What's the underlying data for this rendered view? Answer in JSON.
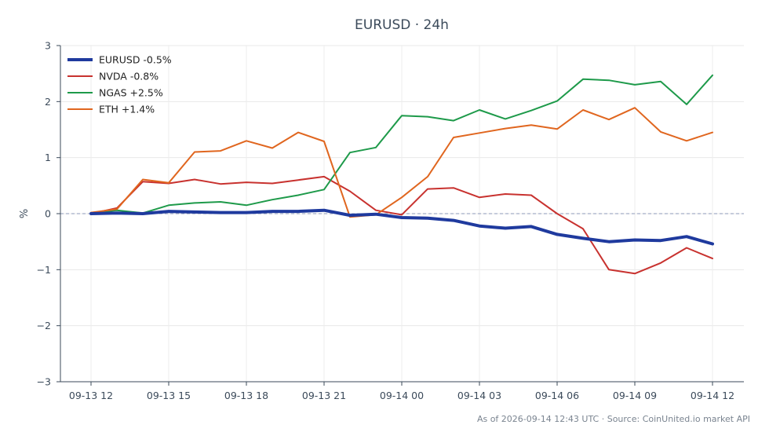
{
  "chart_data": {
    "type": "line",
    "title": "EURUSD · 24h",
    "ylabel": "%",
    "xlabel": "",
    "ylim": [
      -3,
      3
    ],
    "yticks": [
      -3,
      -2,
      -1,
      0,
      1,
      2,
      3
    ],
    "ytick_labels": [
      "−3",
      "−2",
      "−1",
      "0",
      "1",
      "2",
      "3"
    ],
    "x": [
      "09-13 12",
      "09-13 13",
      "09-13 14",
      "09-13 15",
      "09-13 16",
      "09-13 17",
      "09-13 18",
      "09-13 19",
      "09-13 20",
      "09-13 21",
      "09-13 22",
      "09-13 23",
      "09-14 00",
      "09-14 01",
      "09-14 02",
      "09-14 03",
      "09-14 04",
      "09-14 05",
      "09-14 06",
      "09-14 07",
      "09-14 08",
      "09-14 09",
      "09-14 10",
      "09-14 11",
      "09-14 12"
    ],
    "xtick_labels": [
      "09-13 12",
      "09-13 15",
      "09-13 18",
      "09-13 21",
      "09-14 00",
      "09-14 03",
      "09-14 06",
      "09-14 09",
      "09-14 12"
    ],
    "grid": true,
    "zero_line": true,
    "legend_position": "top-left",
    "series": [
      {
        "name": "EURUSD -0.5%",
        "color": "#1f3a9e",
        "width": "thick",
        "values": [
          0.0,
          0.01,
          0.0,
          0.04,
          0.03,
          0.02,
          0.02,
          0.04,
          0.04,
          0.06,
          -0.03,
          -0.01,
          -0.07,
          -0.08,
          -0.12,
          -0.22,
          -0.26,
          -0.23,
          -0.37,
          -0.44,
          -0.5,
          -0.47,
          -0.48,
          -0.41,
          -0.54
        ]
      },
      {
        "name": "NVDA -0.8%",
        "color": "#c8322f",
        "width": "thin",
        "values": [
          0.0,
          0.1,
          0.57,
          0.54,
          0.61,
          0.53,
          0.56,
          0.54,
          0.6,
          0.66,
          0.4,
          0.06,
          -0.02,
          0.44,
          0.46,
          0.29,
          0.35,
          0.33,
          0.0,
          -0.27,
          -1.0,
          -1.07,
          -0.88,
          -0.61,
          -0.8
        ]
      },
      {
        "name": "NGAS +2.5%",
        "color": "#1e9a4a",
        "width": "thin",
        "values": [
          0.01,
          0.06,
          0.01,
          0.15,
          0.19,
          0.21,
          0.15,
          0.25,
          0.33,
          0.43,
          1.09,
          1.18,
          1.75,
          1.73,
          1.66,
          1.85,
          1.69,
          1.84,
          2.01,
          2.4,
          2.38,
          2.3,
          2.36,
          1.95,
          2.47
        ]
      },
      {
        "name": "ETH +1.4%",
        "color": "#e0661f",
        "width": "thin",
        "values": [
          0.02,
          0.08,
          0.61,
          0.55,
          1.1,
          1.12,
          1.3,
          1.17,
          1.45,
          1.29,
          -0.06,
          -0.02,
          0.29,
          0.66,
          1.36,
          1.44,
          1.52,
          1.58,
          1.51,
          1.85,
          1.68,
          1.89,
          1.46,
          1.3,
          1.45
        ]
      }
    ]
  },
  "footer": "As of 2026-09-14 12:43 UTC · Source: CoinUnited.io market API"
}
